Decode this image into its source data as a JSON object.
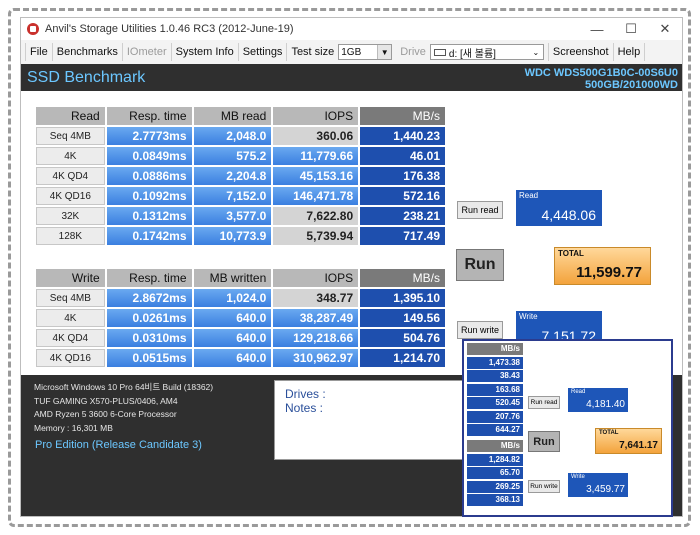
{
  "window": {
    "title": "Anvil's Storage Utilities 1.0.46 RC3 (2012-June-19)"
  },
  "controls": {
    "minimize": "—",
    "maximize": "☐",
    "close": "✕"
  },
  "menu": {
    "file": "File",
    "benchmarks": "Benchmarks",
    "iometer": "IOmeter",
    "system_info": "System Info",
    "settings": "Settings",
    "test_size_label": "Test size",
    "test_size_value": "1GB",
    "drive_label": "Drive",
    "drive_value": "d: [새 볼륨]",
    "screenshot": "Screenshot",
    "help": "Help"
  },
  "header": {
    "title": "SSD Benchmark",
    "model_line1": "WDC WDS500G1B0C-00S6U0",
    "model_line2": "500GB/201000WD"
  },
  "read_table": {
    "headers": [
      "Read",
      "Resp. time",
      "MB read",
      "IOPS",
      "MB/s"
    ],
    "rows": [
      [
        "Seq 4MB",
        "2.7773ms",
        "2,048.0",
        "360.06",
        "1,440.23"
      ],
      [
        "4K",
        "0.0849ms",
        "575.2",
        "11,779.66",
        "46.01"
      ],
      [
        "4K QD4",
        "0.0886ms",
        "2,204.8",
        "45,153.16",
        "176.38"
      ],
      [
        "4K QD16",
        "0.1092ms",
        "7,152.0",
        "146,471.78",
        "572.16"
      ],
      [
        "32K",
        "0.1312ms",
        "3,577.0",
        "7,622.80",
        "238.21"
      ],
      [
        "128K",
        "0.1742ms",
        "10,773.9",
        "5,739.94",
        "717.49"
      ]
    ]
  },
  "write_table": {
    "headers": [
      "Write",
      "Resp. time",
      "MB written",
      "IOPS",
      "MB/s"
    ],
    "rows": [
      [
        "Seq 4MB",
        "2.8672ms",
        "1,024.0",
        "348.77",
        "1,395.10"
      ],
      [
        "4K",
        "0.0261ms",
        "640.0",
        "38,287.49",
        "149.56"
      ],
      [
        "4K QD4",
        "0.0310ms",
        "640.0",
        "129,218.66",
        "504.76"
      ],
      [
        "4K QD16",
        "0.0515ms",
        "640.0",
        "310,962.97",
        "1,214.70"
      ]
    ]
  },
  "scores": {
    "run_read": "Run read",
    "read_label": "Read",
    "read_value": "4,448.06",
    "run": "Run",
    "total_label": "TOTAL",
    "total_value": "11,599.77",
    "run_write": "Run write",
    "write_label": "Write",
    "write_value": "7,151.72"
  },
  "sysinfo": {
    "os": "Microsoft Windows 10 Pro 64비트 Build (18362)",
    "board": "TUF GAMING X570-PLUS/0406, AM4",
    "cpu": "AMD Ryzen 5 3600 6-Core Processor",
    "memory": "Memory : 16,301 MB",
    "edition": "Pro Edition (Release Candidate 3)"
  },
  "notes": {
    "drives": "Drives :",
    "notes": "Notes :"
  },
  "inset": {
    "read_header": "MB/s",
    "read_values": [
      "1,473.38",
      "38.43",
      "163.68",
      "520.45",
      "207.76",
      "644.27"
    ],
    "write_header": "MB/s",
    "write_values": [
      "1,284.82",
      "65.70",
      "269.25",
      "368.13"
    ],
    "run_read": "Run read",
    "read_label": "Read",
    "read_value": "4,181.40",
    "run": "Run",
    "total_label": "TOTAL",
    "total_value": "7,641.17",
    "run_write": "Run write",
    "write_label": "Write",
    "write_value": "3,459.77"
  }
}
